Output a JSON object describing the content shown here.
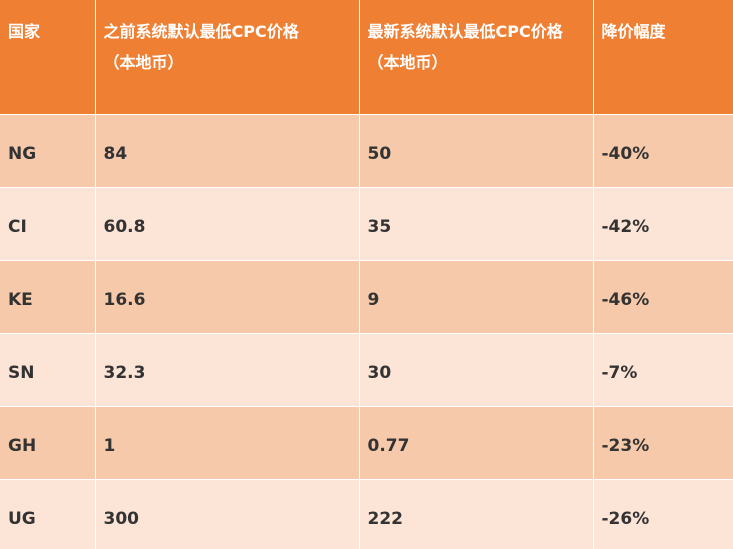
{
  "headers": [
    {
      "line1": "国家",
      "line2": ""
    },
    {
      "line1": "之前系统默认最低CPC价格",
      "line2": "（本地币）"
    },
    {
      "line1": "最新系统默认最低CPC价格",
      "line2": "（本地币）"
    },
    {
      "line1": "降价幅度",
      "line2": ""
    }
  ],
  "rows": [
    {
      "country": "NG",
      "previous": "84",
      "latest": "50",
      "reduction": "-40%"
    },
    {
      "country": "CI",
      "previous": "60.8",
      "latest": "35",
      "reduction": "-42%"
    },
    {
      "country": "KE",
      "previous": "16.6",
      "latest": "9",
      "reduction": "-46%"
    },
    {
      "country": "SN",
      "previous": "32.3",
      "latest": "30",
      "reduction": "-7%"
    },
    {
      "country": "GH",
      "previous": "1",
      "latest": "0.77",
      "reduction": "-23%"
    },
    {
      "country": "UG",
      "previous": "300",
      "latest": "222",
      "reduction": "-26%"
    }
  ],
  "colors": {
    "header_bg": "#ef7f32",
    "row_dark": "#f6c9ab",
    "row_light": "#fce4d6",
    "header_text": "#ffffff",
    "cell_text": "#333333"
  }
}
